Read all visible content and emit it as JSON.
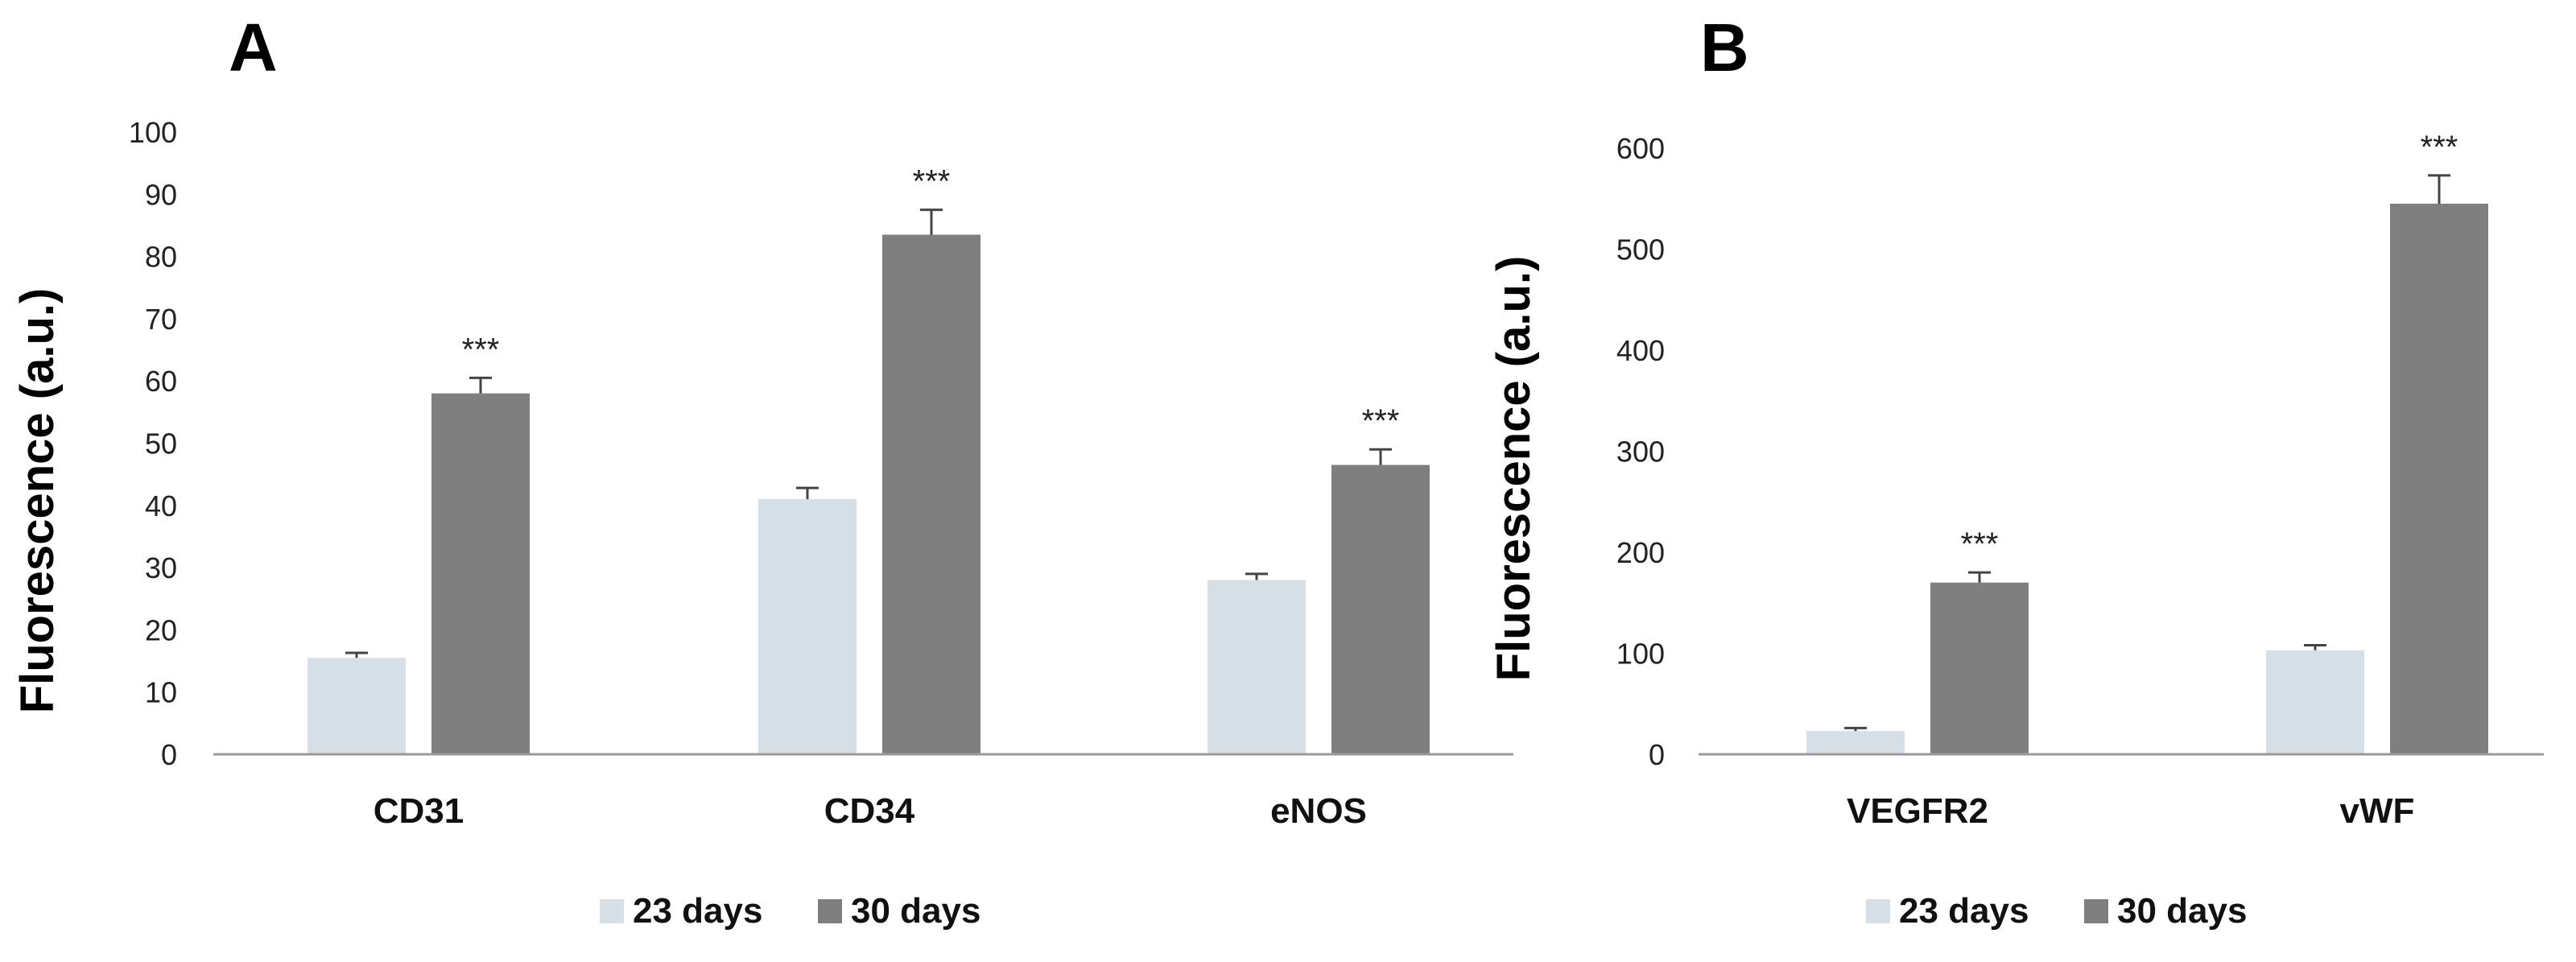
{
  "colors": {
    "days23": "#d6dee6",
    "days30": "#7f7f7f",
    "axis": "#999999",
    "errbar": "#444444"
  },
  "chart_data": [
    {
      "type": "bar",
      "panel": "A",
      "title": "",
      "xlabel": "",
      "ylabel": "Fluorescence (a.u.)",
      "ylim": [
        0,
        100
      ],
      "yticks": [
        "0",
        "10",
        "20",
        "30",
        "40",
        "50",
        "60",
        "70",
        "80",
        "90",
        "100"
      ],
      "categories": [
        "CD31",
        "CD34",
        "eNOS"
      ],
      "series": [
        {
          "name": "23 days",
          "values": [
            15.5,
            41,
            28
          ],
          "errors": [
            0.8,
            1.8,
            1.0
          ],
          "sig": [
            "",
            "",
            ""
          ]
        },
        {
          "name": "30 days",
          "values": [
            58,
            83.5,
            46.5
          ],
          "errors": [
            2.5,
            4.0,
            2.5
          ],
          "sig": [
            "***",
            "***",
            "***"
          ]
        }
      ],
      "legend": "bottom-center"
    },
    {
      "type": "bar",
      "panel": "B",
      "title": "",
      "xlabel": "",
      "ylabel": "Fluorescence (a.u.)",
      "ylim": [
        0,
        600
      ],
      "yticks": [
        "0",
        "100",
        "200",
        "300",
        "400",
        "500",
        "600"
      ],
      "categories": [
        "VEGFR2",
        "vWF"
      ],
      "series": [
        {
          "name": "23 days",
          "values": [
            23,
            103
          ],
          "errors": [
            3,
            5
          ],
          "sig": [
            "",
            ""
          ]
        },
        {
          "name": "30 days",
          "values": [
            170,
            545
          ],
          "errors": [
            10,
            28
          ],
          "sig": [
            "***",
            "***"
          ]
        }
      ],
      "legend": "bottom-center"
    }
  ]
}
